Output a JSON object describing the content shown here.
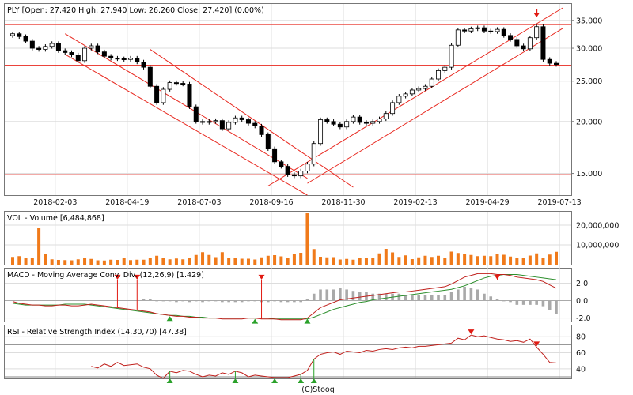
{
  "colors": {
    "background": "#ffffff",
    "grid": "#dddddd",
    "channel": "#e8281f",
    "volume": "#f07a1a",
    "macd": "#c0201c",
    "signal": "#2d8f2d",
    "histogram": "#a9a9a9",
    "rsi": "#c0201c",
    "rsi_level": "#8a8a8a",
    "buy_marker": "#2aa12a",
    "sell_marker": "#e11a12"
  },
  "footer": "(C)Stooq",
  "chart_data": [
    {
      "type": "candlestick",
      "title": "PLY [Open: 27.420  High: 27.940  Low: 26.260  Close: 27.420]  (0.00%)",
      "x_ticks": [
        "2018-02-03",
        "2018-04-19",
        "2018-07-03",
        "2018-09-16",
        "2018-11-30",
        "2019-02-13",
        "2019-04-29",
        "2019-07-13"
      ],
      "y_ticks": [
        "35.000",
        "30.000",
        "25.000",
        "20.000",
        "15.000"
      ],
      "yscale": "log",
      "ylim": [
        13.6,
        37.5
      ],
      "grid": true,
      "weekly_close": [
        32.5,
        32.0,
        31.2,
        30.0,
        29.8,
        30.3,
        30.8,
        29.6,
        29.3,
        28.9,
        28.0,
        30.0,
        30.4,
        29.4,
        28.7,
        28.4,
        28.3,
        28.2,
        28.4,
        27.8,
        27.0,
        24.3,
        22.2,
        23.9,
        24.8,
        24.7,
        24.6,
        21.7,
        20.0,
        19.9,
        20.0,
        20.1,
        19.2,
        19.9,
        20.4,
        20.2,
        19.8,
        19.5,
        18.6,
        17.2,
        16.0,
        15.6,
        14.9,
        14.8,
        15.2,
        15.8,
        17.7,
        20.2,
        20.0,
        19.7,
        19.4,
        20.0,
        20.5,
        19.9,
        19.8,
        20.0,
        20.3,
        20.9,
        22.2,
        23.0,
        23.3,
        23.8,
        24.0,
        24.3,
        25.3,
        26.5,
        27.0,
        30.5,
        33.2,
        33.0,
        33.4,
        33.6,
        33.0,
        32.9,
        33.3,
        32.2,
        31.5,
        30.4,
        29.9,
        31.8,
        33.8,
        28.2,
        27.6,
        27.42
      ],
      "markers": [
        {
          "type": "arrow-down",
          "at_week": 80
        }
      ]
    },
    {
      "type": "bar",
      "title": "VOL - Volume [6,484,868]",
      "y_ticks": [
        "20,000,000",
        "10,000,000"
      ],
      "ylim": [
        0,
        26000000
      ],
      "values": [
        3900000.0,
        4300000.0,
        3600000.0,
        3300000.0,
        18500000.0,
        5400000.0,
        2700000.0,
        2400000.0,
        2300000.0,
        2200000.0,
        2700000.0,
        3300000.0,
        2900000.0,
        2200000.0,
        2100000.0,
        2500000.0,
        2400000.0,
        3400000.0,
        2300000.0,
        2500000.0,
        2500000.0,
        3300000.0,
        4500000.0,
        3500000.0,
        2700000.0,
        3100000.0,
        2700000.0,
        3200000.0,
        4900000.0,
        6300000.0,
        4900000.0,
        3800000.0,
        6300000.0,
        3400000.0,
        3400000.0,
        3000000.0,
        3000000.0,
        2600000.0,
        3700000.0,
        4500000.0,
        4800000.0,
        4200000.0,
        3500000.0,
        5600000.0,
        6000000.0,
        26300000.0,
        7900000.0,
        4000000.0,
        3700000.0,
        3800000.0,
        2600000.0,
        2900000.0,
        2500000.0,
        3400000.0,
        3300000.0,
        3600000.0,
        5700000.0,
        8000000.0,
        6200000.0,
        3900000.0,
        4700000.0,
        2800000.0,
        3700000.0,
        4500000.0,
        3900000.0,
        4500000.0,
        3600000.0,
        6600000.0,
        5900000.0,
        5400000.0,
        4900000.0,
        4300000.0,
        4500000.0,
        4300000.0,
        5200000.0,
        5000000.0,
        4100000.0,
        3600000.0,
        3400000.0,
        4600000.0,
        5700000.0,
        3500000.0,
        5100000.0,
        6500000.0
      ]
    },
    {
      "type": "line",
      "title": "MACD - Moving Average Conv. Div. (12,26,9) [1.429]",
      "y_ticks": [
        "2.0",
        "0.0",
        "-2.0"
      ],
      "ylim": [
        -2.4,
        3.5
      ],
      "series": [
        {
          "name": "MACD",
          "values": [
            -0.1,
            -0.3,
            -0.4,
            -0.5,
            -0.5,
            -0.6,
            -0.6,
            -0.5,
            -0.5,
            -0.6,
            -0.6,
            -0.5,
            -0.4,
            -0.5,
            -0.6,
            -0.7,
            -0.8,
            -0.9,
            -1.0,
            -1.1,
            -1.2,
            -1.3,
            -1.5,
            -1.6,
            -1.7,
            -1.8,
            -1.8,
            -1.9,
            -1.9,
            -2.0,
            -2.0,
            -2.0,
            -2.1,
            -2.1,
            -2.1,
            -2.1,
            -2.0,
            -2.0,
            -2.1,
            -2.1,
            -2.1,
            -2.2,
            -2.2,
            -2.2,
            -2.2,
            -2.0,
            -1.4,
            -0.8,
            -0.5,
            -0.2,
            0.1,
            0.2,
            0.3,
            0.4,
            0.5,
            0.6,
            0.7,
            0.8,
            0.9,
            1.0,
            1.0,
            1.1,
            1.2,
            1.3,
            1.4,
            1.5,
            1.6,
            1.9,
            2.3,
            2.7,
            2.9,
            3.1,
            3.1,
            3.1,
            3.0,
            3.0,
            2.9,
            2.7,
            2.6,
            2.5,
            2.4,
            2.2,
            1.8,
            1.43
          ]
        },
        {
          "name": "Signal",
          "values": [
            -0.3,
            -0.4,
            -0.5,
            -0.5,
            -0.5,
            -0.5,
            -0.5,
            -0.5,
            -0.4,
            -0.4,
            -0.4,
            -0.4,
            -0.5,
            -0.6,
            -0.7,
            -0.8,
            -0.9,
            -1.0,
            -1.1,
            -1.2,
            -1.3,
            -1.4,
            -1.5,
            -1.6,
            -1.7,
            -1.7,
            -1.8,
            -1.8,
            -1.9,
            -1.9,
            -2.0,
            -2.0,
            -2.0,
            -2.0,
            -2.0,
            -2.0,
            -2.0,
            -2.0,
            -2.0,
            -2.0,
            -2.1,
            -2.1,
            -2.1,
            -2.1,
            -2.1,
            -2.1,
            -1.9,
            -1.6,
            -1.3,
            -1.0,
            -0.8,
            -0.6,
            -0.4,
            -0.2,
            -0.1,
            0.1,
            0.2,
            0.3,
            0.4,
            0.5,
            0.6,
            0.7,
            0.8,
            0.9,
            1.0,
            1.1,
            1.2,
            1.3,
            1.5,
            1.7,
            2.0,
            2.3,
            2.6,
            2.8,
            2.9,
            3.0,
            3.0,
            3.0,
            2.9,
            2.8,
            2.7,
            2.6,
            2.5,
            2.4
          ]
        }
      ],
      "histogram_start_week": 20,
      "markers": [
        {
          "type": "arrow-down",
          "at_week": 16
        },
        {
          "type": "arrow-down",
          "at_week": 19
        },
        {
          "type": "arrow-up",
          "at_week": 24
        },
        {
          "type": "arrow-down",
          "at_week": 38
        },
        {
          "type": "arrow-up",
          "at_week": 37
        },
        {
          "type": "arrow-up",
          "at_week": 45
        },
        {
          "type": "arrow-down",
          "at_week": 74
        }
      ]
    },
    {
      "type": "line",
      "title": "RSI - Relative Strength Index (14,30,70) [47.38]",
      "y_ticks": [
        "80",
        "60",
        "40"
      ],
      "ylim": [
        28,
        92
      ],
      "levels": [
        70,
        30
      ],
      "series": [
        {
          "name": "RSI",
          "values": [
            null,
            null,
            null,
            null,
            null,
            null,
            null,
            null,
            null,
            null,
            null,
            null,
            43,
            41,
            46,
            43,
            48,
            44,
            45,
            46,
            42,
            40,
            32,
            28,
            37,
            35,
            38,
            37,
            33,
            30,
            32,
            31,
            35,
            33,
            37,
            35,
            30,
            32,
            31,
            30,
            29,
            29,
            29,
            31,
            33,
            38,
            52,
            58,
            60,
            61,
            58,
            62,
            61,
            60,
            63,
            62,
            64,
            65,
            64,
            66,
            67,
            66,
            68,
            68,
            69,
            70,
            71,
            72,
            78,
            76,
            82,
            80,
            81,
            79,
            77,
            76,
            74,
            75,
            73,
            77,
            67,
            58,
            48,
            47.38
          ]
        }
      ],
      "markers": [
        {
          "type": "arrow-up",
          "at_week": 24
        },
        {
          "type": "arrow-up",
          "at_week": 34
        },
        {
          "type": "arrow-up",
          "at_week": 40
        },
        {
          "type": "arrow-up",
          "at_week": 44
        },
        {
          "type": "arrow-up",
          "at_week": 46
        },
        {
          "type": "arrow-down",
          "at_week": 70
        },
        {
          "type": "arrow-down",
          "at_week": 80
        }
      ]
    }
  ]
}
